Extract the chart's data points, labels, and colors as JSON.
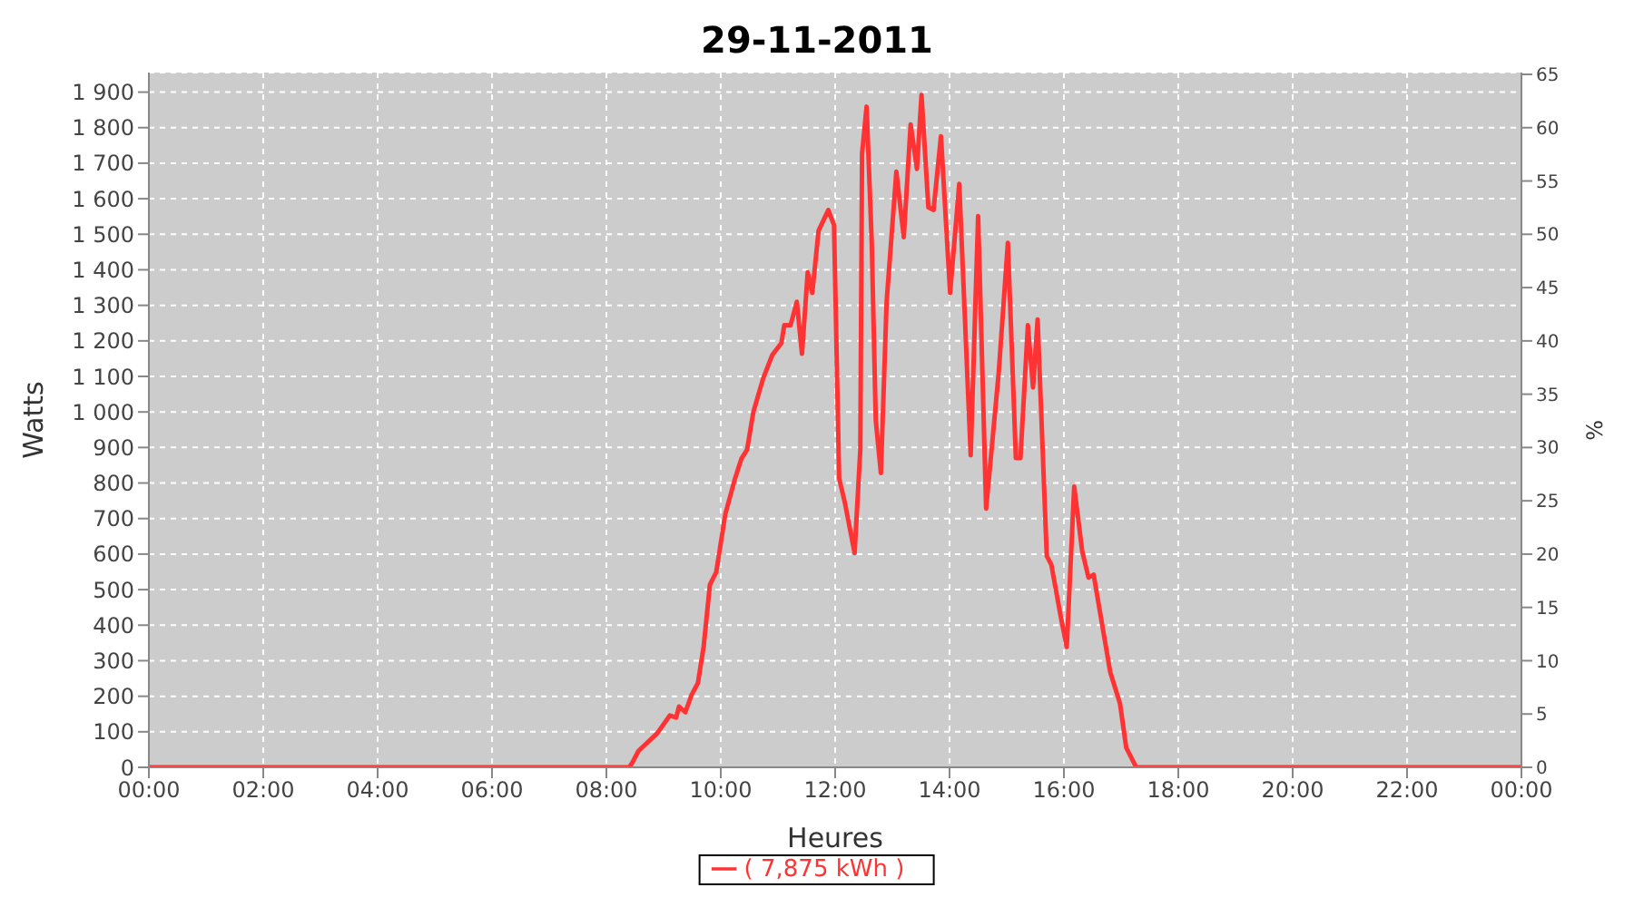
{
  "chart_data": {
    "type": "line",
    "title": "29-11-2011",
    "xlabel": "Heures",
    "ylabel": "Watts",
    "y2label": "%",
    "xlim": [
      0,
      24
    ],
    "xticks": [
      {
        "value": 0,
        "label": "00:00"
      },
      {
        "value": 2,
        "label": "02:00"
      },
      {
        "value": 4,
        "label": "04:00"
      },
      {
        "value": 6,
        "label": "06:00"
      },
      {
        "value": 8,
        "label": "08:00"
      },
      {
        "value": 10,
        "label": "10:00"
      },
      {
        "value": 12,
        "label": "12:00"
      },
      {
        "value": 14,
        "label": "14:00"
      },
      {
        "value": 16,
        "label": "16:00"
      },
      {
        "value": 18,
        "label": "18:00"
      },
      {
        "value": 20,
        "label": "20:00"
      },
      {
        "value": 22,
        "label": "22:00"
      },
      {
        "value": 24,
        "label": "00:00"
      }
    ],
    "ylim": [
      0,
      1955
    ],
    "yticks": [
      0,
      100,
      200,
      300,
      400,
      500,
      600,
      700,
      800,
      900,
      {
        "value": 1000,
        "label": "1 000"
      },
      {
        "value": 1100,
        "label": "1 100"
      },
      {
        "value": 1200,
        "label": "1 200"
      },
      {
        "value": 1300,
        "label": "1 300"
      },
      {
        "value": 1400,
        "label": "1 400"
      },
      {
        "value": 1500,
        "label": "1 500"
      },
      {
        "value": 1600,
        "label": "1 600"
      },
      {
        "value": 1700,
        "label": "1 700"
      },
      {
        "value": 1800,
        "label": "1 800"
      },
      {
        "value": 1900,
        "label": "1 900"
      }
    ],
    "y2lim": [
      0,
      65.17
    ],
    "y2ticks": [
      0,
      5,
      10,
      15,
      20,
      25,
      30,
      35,
      40,
      45,
      50,
      55,
      60,
      65
    ],
    "grid": true,
    "legend": "bottom",
    "marker": "none",
    "line_style": "solid",
    "series": [
      {
        "name": "( 7,875 kWh )",
        "color": "#ff3333",
        "x": [
          0,
          8.4,
          8.46,
          8.56,
          8.89,
          9.11,
          9.22,
          9.27,
          9.38,
          9.49,
          9.6,
          9.7,
          9.81,
          9.92,
          10.08,
          10.25,
          10.36,
          10.46,
          10.57,
          10.74,
          10.9,
          11.06,
          11.11,
          11.22,
          11.33,
          11.42,
          11.52,
          11.6,
          11.71,
          11.88,
          11.98,
          12.07,
          12.17,
          12.34,
          12.44,
          12.47,
          12.55,
          12.64,
          12.71,
          12.8,
          12.9,
          13.07,
          13.2,
          13.32,
          13.43,
          13.51,
          13.63,
          13.72,
          13.85,
          14.01,
          14.17,
          14.37,
          14.5,
          14.64,
          14.86,
          15.02,
          15.16,
          15.24,
          15.37,
          15.46,
          15.54,
          15.7,
          15.78,
          15.95,
          16.05,
          16.18,
          16.32,
          16.43,
          16.52,
          16.81,
          16.98,
          17.09,
          17.25,
          17.27,
          24
        ],
        "values": [
          0,
          0,
          15,
          46,
          96,
          146,
          140,
          171,
          155,
          204,
          237,
          339,
          514,
          549,
          713,
          813,
          868,
          894,
          1000,
          1094,
          1160,
          1194,
          1244,
          1244,
          1310,
          1164,
          1393,
          1335,
          1510,
          1568,
          1526,
          813,
          745,
          603,
          894,
          1726,
          1859,
          1476,
          977,
          828,
          1310,
          1676,
          1492,
          1809,
          1684,
          1892,
          1576,
          1568,
          1776,
          1335,
          1642,
          878,
          1551,
          728,
          1111,
          1476,
          870,
          870,
          1244,
          1069,
          1260,
          595,
          570,
          420,
          339,
          790,
          608,
          534,
          542,
          268,
          180,
          55,
          5,
          0,
          0
        ]
      }
    ]
  }
}
